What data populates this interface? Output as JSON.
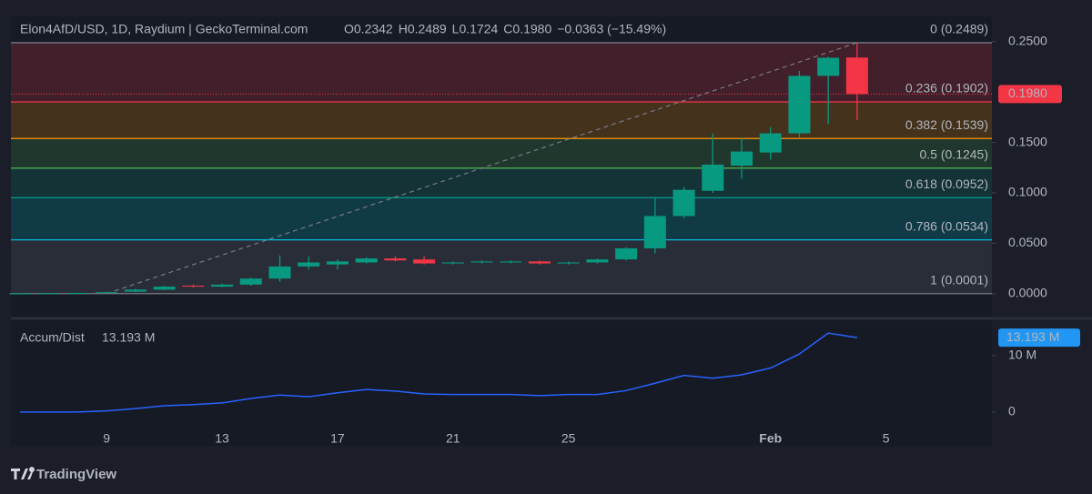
{
  "header": {
    "symbol": "Elon4AfD/USD, 1D, Raydium | GeckoTerminal.com",
    "ohlc": [
      {
        "label": "O",
        "value": "0.2342"
      },
      {
        "label": "H",
        "value": "0.2489"
      },
      {
        "label": "L",
        "value": "0.1724"
      },
      {
        "label": "C",
        "value": "0.1980"
      }
    ],
    "change": "−0.0363 (−15.49%)"
  },
  "chart_data": [
    {
      "type": "candlestick",
      "categories": [
        null,
        null,
        null,
        "9",
        null,
        null,
        null,
        "13",
        null,
        null,
        null,
        "17",
        null,
        null,
        null,
        "21",
        null,
        null,
        null,
        "25",
        null,
        null,
        null,
        null,
        null,
        null,
        "Feb",
        null,
        null,
        null,
        "5"
      ],
      "up_color": "#089981",
      "down_color": "#f23645",
      "open": [
        0.0002,
        0.0004,
        0.0006,
        0.001,
        0.002,
        0.004,
        0.008,
        0.007,
        0.009,
        0.015,
        0.027,
        0.029,
        0.031,
        0.035,
        0.034,
        0.03,
        0.031,
        0.031,
        0.032,
        0.03,
        0.031,
        0.034,
        0.045,
        0.077,
        0.102,
        0.127,
        0.14,
        0.159,
        0.216,
        0.2342,
        null
      ],
      "high": [
        0.0004,
        0.0006,
        0.001,
        0.002,
        0.005,
        0.008,
        0.009,
        0.01,
        0.016,
        0.038,
        0.037,
        0.034,
        0.036,
        0.037,
        0.037,
        0.032,
        0.033,
        0.033,
        0.033,
        0.032,
        0.035,
        0.046,
        0.095,
        0.106,
        0.159,
        0.155,
        0.165,
        0.221,
        0.235,
        0.2489,
        null
      ],
      "low": [
        0.0001,
        0.0003,
        0.0005,
        0.0009,
        0.0015,
        0.0035,
        0.006,
        0.0065,
        0.008,
        0.012,
        0.024,
        0.024,
        0.03,
        0.032,
        0.029,
        0.029,
        0.03,
        0.03,
        0.029,
        0.029,
        0.03,
        0.033,
        0.04,
        0.075,
        0.1,
        0.114,
        0.133,
        0.155,
        0.168,
        0.1724,
        null
      ],
      "close": [
        0.0003,
        0.0005,
        0.0008,
        0.0015,
        0.004,
        0.007,
        0.007,
        0.009,
        0.015,
        0.027,
        0.031,
        0.032,
        0.035,
        0.033,
        0.03,
        0.031,
        0.032,
        0.032,
        0.03,
        0.031,
        0.034,
        0.045,
        0.077,
        0.103,
        0.128,
        0.141,
        0.159,
        0.216,
        0.234,
        0.198,
        null
      ],
      "ylim": [
        -0.02,
        0.275
      ],
      "yticks": [
        {
          "value": 0,
          "label": "0.0000"
        },
        {
          "value": 0.05,
          "label": "0.0500"
        },
        {
          "value": 0.1,
          "label": "0.1000"
        },
        {
          "value": 0.15,
          "label": "0.1500"
        },
        {
          "value": 0.25,
          "label": "0.2500"
        }
      ],
      "last_price": 0.198,
      "last_price_label": "0.1980",
      "fib_levels": [
        {
          "label": "0 (0.2489)",
          "price": 0.2489,
          "color": "#787b86"
        },
        {
          "label": "0.236 (0.1902)",
          "price": 0.1902,
          "color": "#f23645"
        },
        {
          "label": "0.382 (0.1539)",
          "price": 0.1539,
          "color": "#ff9800"
        },
        {
          "label": "0.5 (0.1245)",
          "price": 0.1245,
          "color": "#4caf50"
        },
        {
          "label": "0.618 (0.0952)",
          "price": 0.0952,
          "color": "#089981"
        },
        {
          "label": "0.786 (0.0534)",
          "price": 0.0534,
          "color": "#00bcd4"
        },
        {
          "label": "1 (0.0001)",
          "price": 0.0001,
          "color": "#787b86"
        }
      ]
    },
    {
      "type": "line",
      "title": "Accum/Dist",
      "series": [
        {
          "name": "Accum/Dist",
          "color": "#2962ff",
          "values": [
            0,
            0,
            0,
            0.2,
            0.6,
            1.1,
            1.3,
            1.6,
            2.4,
            3.0,
            2.7,
            3.4,
            4.0,
            3.7,
            3.2,
            3.1,
            3.1,
            3.1,
            2.9,
            3.1,
            3.1,
            3.8,
            5.1,
            6.5,
            6.0,
            6.6,
            7.8,
            10.3,
            14.0,
            13.193,
            null
          ]
        }
      ],
      "last_value": 13.193,
      "last_value_label": "13.193 M",
      "ylim": [
        -6,
        15.8
      ],
      "yticks": [
        0,
        {
          "value": 10,
          "label": "10 M"
        }
      ]
    }
  ],
  "footer": {
    "brand": "TradingView"
  }
}
